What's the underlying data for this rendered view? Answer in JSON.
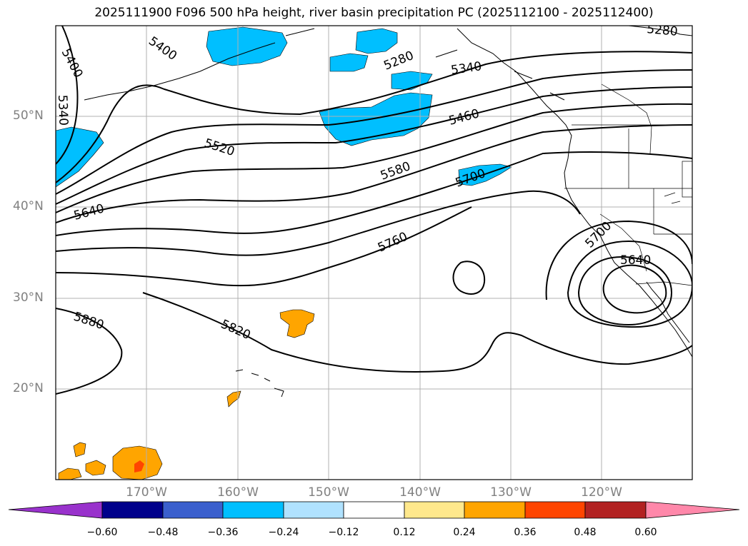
{
  "title": "2025111900 F096 500 hPa height, river basin precipitation PC (2025112100 - 2025112400)",
  "map": {
    "lon_range": [
      -180,
      -110
    ],
    "lat_range": [
      10,
      60
    ],
    "lat_ticks": [
      {
        "lat": 50,
        "label": "50°N"
      },
      {
        "lat": 40,
        "label": "40°N"
      },
      {
        "lat": 30,
        "label": "30°N"
      },
      {
        "lat": 20,
        "label": "20°N"
      }
    ],
    "lon_ticks": [
      {
        "lon": -170,
        "label": "170°W"
      },
      {
        "lon": -160,
        "label": "160°W"
      },
      {
        "lon": -150,
        "label": "150°W"
      },
      {
        "lon": -140,
        "label": "140°W"
      },
      {
        "lon": -130,
        "label": "130°W"
      },
      {
        "lon": -120,
        "label": "120°W"
      }
    ],
    "grid": true,
    "contour_labels": [
      "5400",
      "5340",
      "5400",
      "5280",
      "5340",
      "5280",
      "5460",
      "5520",
      "5580",
      "5700",
      "5640",
      "5760",
      "5700",
      "5640",
      "5880",
      "5820"
    ]
  },
  "colorbar": {
    "ticks": [
      "−0.60",
      "−0.48",
      "−0.36",
      "−0.24",
      "−0.12",
      "0.12",
      "0.24",
      "0.36",
      "0.48",
      "0.60"
    ],
    "under_color": "#9932cc",
    "over_color": "#ff88aa",
    "colors": [
      "#00008b",
      "#3a5fcd",
      "#00bfff",
      "#b0e2ff",
      "#ffffff",
      "#ffe88c",
      "#ffa500",
      "#ff4500",
      "#b22222"
    ]
  }
}
